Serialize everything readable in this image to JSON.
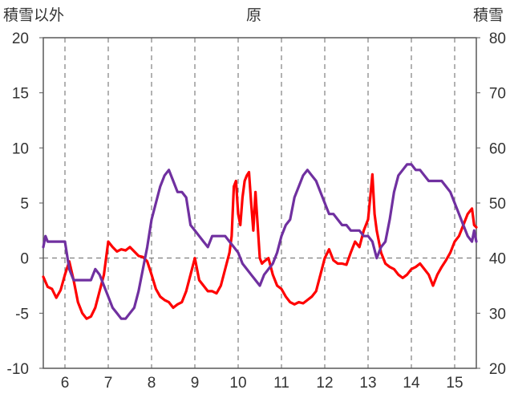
{
  "header": {
    "left_axis_title": "積雪以外",
    "center_title": "原",
    "right_axis_title": "積雪"
  },
  "chart_data": {
    "type": "line",
    "title": "原",
    "ylabel_left": "積雪以外",
    "ylabel_right": "積雪",
    "x_categories": [
      "6",
      "7",
      "8",
      "9",
      "10",
      "11",
      "12",
      "13",
      "14",
      "15"
    ],
    "xlim": [
      5.5,
      15.5
    ],
    "ylim_left": [
      -10,
      20
    ],
    "ylim_right": [
      20,
      80
    ],
    "yticks_left": [
      "-10",
      "-5",
      "0",
      "5",
      "10",
      "15",
      "20"
    ],
    "yticks_right": [
      "20",
      "30",
      "40",
      "50",
      "60",
      "70",
      "80"
    ],
    "grid": "dashed vertical at each day, dashed horizontal at 0",
    "colors": {
      "series_red": "#ff0000",
      "series_purple": "#7030a0",
      "grid": "#666666"
    },
    "series": [
      {
        "axis": "left",
        "color": "#ff0000",
        "x": [
          5.5,
          5.6,
          5.7,
          5.8,
          5.9,
          6.0,
          6.1,
          6.2,
          6.3,
          6.4,
          6.5,
          6.6,
          6.7,
          6.8,
          6.9,
          7.0,
          7.1,
          7.2,
          7.3,
          7.4,
          7.5,
          7.6,
          7.7,
          7.8,
          7.9,
          8.0,
          8.1,
          8.2,
          8.3,
          8.4,
          8.5,
          8.6,
          8.7,
          8.8,
          8.9,
          9.0,
          9.1,
          9.2,
          9.3,
          9.4,
          9.5,
          9.6,
          9.7,
          9.8,
          9.85,
          9.9,
          9.95,
          10.0,
          10.05,
          10.1,
          10.15,
          10.2,
          10.25,
          10.3,
          10.35,
          10.4,
          10.45,
          10.5,
          10.55,
          10.6,
          10.7,
          10.8,
          10.9,
          11.0,
          11.1,
          11.2,
          11.3,
          11.4,
          11.5,
          11.6,
          11.7,
          11.8,
          11.9,
          12.0,
          12.1,
          12.2,
          12.3,
          12.4,
          12.5,
          12.6,
          12.7,
          12.8,
          12.9,
          13.0,
          13.05,
          13.1,
          13.15,
          13.2,
          13.3,
          13.4,
          13.5,
          13.6,
          13.7,
          13.8,
          13.9,
          14.0,
          14.1,
          14.2,
          14.3,
          14.4,
          14.5,
          14.6,
          14.7,
          14.8,
          14.9,
          15.0,
          15.1,
          15.2,
          15.3,
          15.4,
          15.45,
          15.5
        ],
        "y": [
          -1.7,
          -2.6,
          -2.8,
          -3.6,
          -2.9,
          -1.5,
          -0.3,
          -2.0,
          -4.0,
          -5.0,
          -5.5,
          -5.3,
          -4.5,
          -3.0,
          -1.5,
          1.5,
          1.0,
          0.6,
          0.8,
          0.7,
          1.0,
          0.6,
          0.2,
          0.1,
          -0.3,
          -1.5,
          -2.8,
          -3.5,
          -3.8,
          -4.0,
          -4.5,
          -4.2,
          -4.0,
          -3.0,
          -1.5,
          0.0,
          -2.0,
          -2.5,
          -3.0,
          -3.0,
          -3.2,
          -2.5,
          -1.0,
          0.5,
          2.0,
          6.5,
          7.0,
          4.0,
          3.0,
          5.5,
          7.0,
          7.5,
          7.8,
          5.0,
          2.5,
          6.0,
          3.0,
          0.0,
          -0.5,
          -0.3,
          0.0,
          -1.5,
          -2.5,
          -2.8,
          -3.5,
          -4.0,
          -4.2,
          -4.0,
          -4.1,
          -3.8,
          -3.5,
          -3.0,
          -1.5,
          0.0,
          0.8,
          -0.2,
          -0.5,
          -0.5,
          -0.6,
          0.5,
          1.5,
          1.0,
          2.5,
          3.5,
          5.5,
          7.6,
          4.0,
          2.5,
          0.5,
          -0.5,
          -0.8,
          -1.0,
          -1.5,
          -1.8,
          -1.5,
          -1.0,
          -0.8,
          -0.5,
          -1.0,
          -1.5,
          -2.5,
          -1.5,
          -0.8,
          -0.2,
          0.5,
          1.5,
          2.0,
          3.0,
          4.0,
          4.5,
          3.0,
          2.8
        ]
      },
      {
        "axis": "right",
        "color": "#7030a0",
        "x": [
          5.5,
          5.55,
          5.6,
          5.7,
          5.8,
          5.9,
          6.0,
          6.1,
          6.2,
          6.3,
          6.4,
          6.5,
          6.6,
          6.7,
          6.8,
          6.9,
          7.0,
          7.1,
          7.2,
          7.3,
          7.4,
          7.5,
          7.6,
          7.7,
          7.8,
          7.9,
          8.0,
          8.1,
          8.2,
          8.3,
          8.4,
          8.5,
          8.6,
          8.7,
          8.8,
          8.9,
          9.0,
          9.1,
          9.2,
          9.3,
          9.4,
          9.5,
          9.6,
          9.7,
          9.8,
          9.9,
          10.0,
          10.1,
          10.2,
          10.3,
          10.4,
          10.5,
          10.6,
          10.7,
          10.8,
          10.9,
          11.0,
          11.1,
          11.2,
          11.3,
          11.4,
          11.5,
          11.6,
          11.7,
          11.8,
          11.9,
          12.0,
          12.1,
          12.2,
          12.3,
          12.4,
          12.5,
          12.6,
          12.7,
          12.8,
          12.9,
          13.0,
          13.1,
          13.2,
          13.3,
          13.4,
          13.5,
          13.6,
          13.7,
          13.8,
          13.9,
          14.0,
          14.1,
          14.2,
          14.3,
          14.4,
          14.5,
          14.6,
          14.7,
          14.8,
          14.9,
          15.0,
          15.1,
          15.2,
          15.3,
          15.4,
          15.45,
          15.5
        ],
        "y": [
          42,
          44,
          43,
          43,
          43,
          43,
          43,
          38,
          36,
          36,
          36,
          36,
          36,
          38,
          37,
          35,
          33,
          31,
          30,
          29,
          29,
          30,
          31,
          34,
          38,
          42,
          47,
          50,
          53,
          55,
          56,
          54,
          52,
          52,
          51,
          46,
          45,
          44,
          43,
          42,
          44,
          44,
          44,
          44,
          43,
          42,
          41,
          39,
          38,
          37,
          36,
          35,
          37,
          38,
          39,
          41,
          44,
          46,
          47,
          51,
          53,
          55,
          56,
          55,
          54,
          52,
          50,
          48,
          48,
          47,
          46,
          46,
          45,
          45,
          45,
          44,
          44,
          43,
          40,
          42,
          43,
          47,
          52,
          55,
          56,
          57,
          57,
          56,
          56,
          55,
          54,
          54,
          54,
          54,
          53,
          52,
          50,
          48,
          46,
          44,
          43,
          45,
          43
        ]
      }
    ]
  }
}
